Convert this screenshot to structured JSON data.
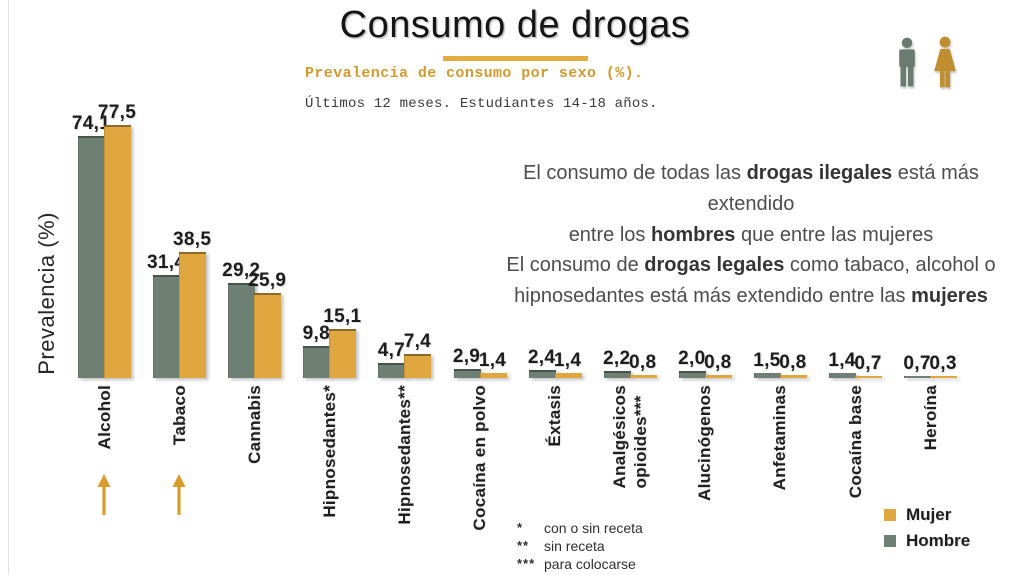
{
  "header": {
    "title": "Consumo de drogas",
    "subtitle": "Prevalencia de consumo por sexo (%).",
    "note": "Últimos 12 meses. Estudiantes 14-18 años."
  },
  "colors": {
    "hombre": "#6e8074",
    "hombre_edge": "#46544b",
    "mujer": "#e0a740",
    "mujer_edge": "#8a6a28",
    "gold_text": "#d29a2e",
    "underline": "#e5ac3f",
    "arrow": "#d79d2c",
    "man_icon": "#697c6f",
    "woman_icon": "#bf8f2f"
  },
  "annotations": {
    "block1_parts": [
      {
        "t": "El consumo de todas las "
      },
      {
        "t": "drogas ilegales",
        "b": true
      },
      {
        "t": " está más extendido"
      },
      {
        "br": true
      },
      {
        "t": "entre los "
      },
      {
        "t": "hombres",
        "b": true
      },
      {
        "t": " que entre las mujeres"
      }
    ],
    "block2_parts": [
      {
        "t": "El consumo de "
      },
      {
        "t": "drogas legales",
        "b": true
      },
      {
        "t": " como tabaco, alcohol o"
      },
      {
        "br": true
      },
      {
        "t": "hipnosedantes está más extendido entre las "
      },
      {
        "t": "mujeres",
        "b": true
      }
    ],
    "arrow_category_indices": [
      0,
      1
    ]
  },
  "chart_data": {
    "type": "bar",
    "title": "Consumo de drogas",
    "subtitle": "Prevalencia de consumo por sexo (%).",
    "note": "Últimos 12 meses. Estudiantes 14-18 años.",
    "ylabel": "Prevalencia (%)",
    "ylim": [
      0,
      80
    ],
    "grid": false,
    "legend_position": "bottom-right",
    "categories": [
      "Alcohol",
      "Tabaco",
      "Cannabis",
      "Hipnosedantes*",
      "Hipnosedantes**",
      "Cocaína en polvo",
      "Éxtasis",
      "Analgésicos\nopioides***",
      "Alucinógenos",
      "Anfetaminas",
      "Cocaína base",
      "Heroína"
    ],
    "series": [
      {
        "name": "Hombre",
        "color": "#6e8074",
        "values": [
          74.1,
          31.4,
          29.2,
          9.8,
          4.7,
          2.9,
          2.4,
          2.2,
          2.0,
          1.5,
          1.4,
          0.7
        ],
        "value_labels": [
          "74,1",
          "31,4",
          "29,2",
          "9,8",
          "4,7",
          "2,9",
          "2,4",
          "2,2",
          "2,0",
          "1,5",
          "1,4",
          "0,7"
        ]
      },
      {
        "name": "Mujer",
        "color": "#e0a740",
        "values": [
          77.5,
          38.5,
          25.9,
          15.1,
          7.4,
          1.4,
          1.4,
          0.8,
          0.8,
          0.8,
          0.7,
          0.3
        ],
        "value_labels": [
          "77,5",
          "38,5",
          "25,9",
          "15,1",
          "7,4",
          "1,4",
          "1,4",
          "0,8",
          "0,8",
          "0,8",
          "0,7",
          "0,3"
        ]
      }
    ]
  },
  "legend": [
    {
      "label": "Mujer",
      "color": "#e0a740"
    },
    {
      "label": "Hombre",
      "color": "#6e8074"
    }
  ],
  "footnotes": [
    {
      "symbol": "*",
      "text": "con o sin receta"
    },
    {
      "symbol": "**",
      "text": "sin receta"
    },
    {
      "symbol": "***",
      "text": "para colocarse"
    }
  ]
}
